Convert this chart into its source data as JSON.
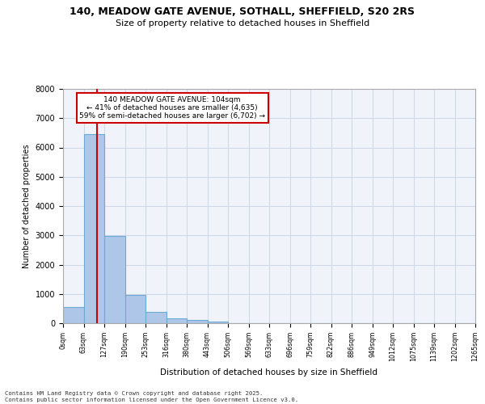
{
  "title_line1": "140, MEADOW GATE AVENUE, SOTHALL, SHEFFIELD, S20 2RS",
  "title_line2": "Size of property relative to detached houses in Sheffield",
  "xlabel": "Distribution of detached houses by size in Sheffield",
  "ylabel": "Number of detached properties",
  "bin_labels": [
    "0sqm",
    "63sqm",
    "127sqm",
    "190sqm",
    "253sqm",
    "316sqm",
    "380sqm",
    "443sqm",
    "506sqm",
    "569sqm",
    "633sqm",
    "696sqm",
    "759sqm",
    "822sqm",
    "886sqm",
    "949sqm",
    "1012sqm",
    "1075sqm",
    "1139sqm",
    "1202sqm",
    "1265sqm"
  ],
  "bar_heights": [
    560,
    6450,
    2980,
    960,
    375,
    165,
    100,
    58,
    10,
    5,
    3,
    2,
    1,
    1,
    1,
    0,
    0,
    0,
    0,
    0
  ],
  "bar_color": "#aec6e8",
  "bar_edge_color": "#6aaad4",
  "grid_color": "#d0d8e8",
  "background_color": "#f0f4fa",
  "vline_x": 104,
  "vline_color": "#cc0000",
  "ylim": [
    0,
    8000
  ],
  "annotation_title": "140 MEADOW GATE AVENUE: 104sqm",
  "annotation_line2": "← 41% of detached houses are smaller (4,635)",
  "annotation_line3": "59% of semi-detached houses are larger (6,702) →",
  "annotation_box_color": "#cc0000",
  "footer_line1": "Contains HM Land Registry data © Crown copyright and database right 2025.",
  "footer_line2": "Contains public sector information licensed under the Open Government Licence v3.0.",
  "bin_width": 63
}
